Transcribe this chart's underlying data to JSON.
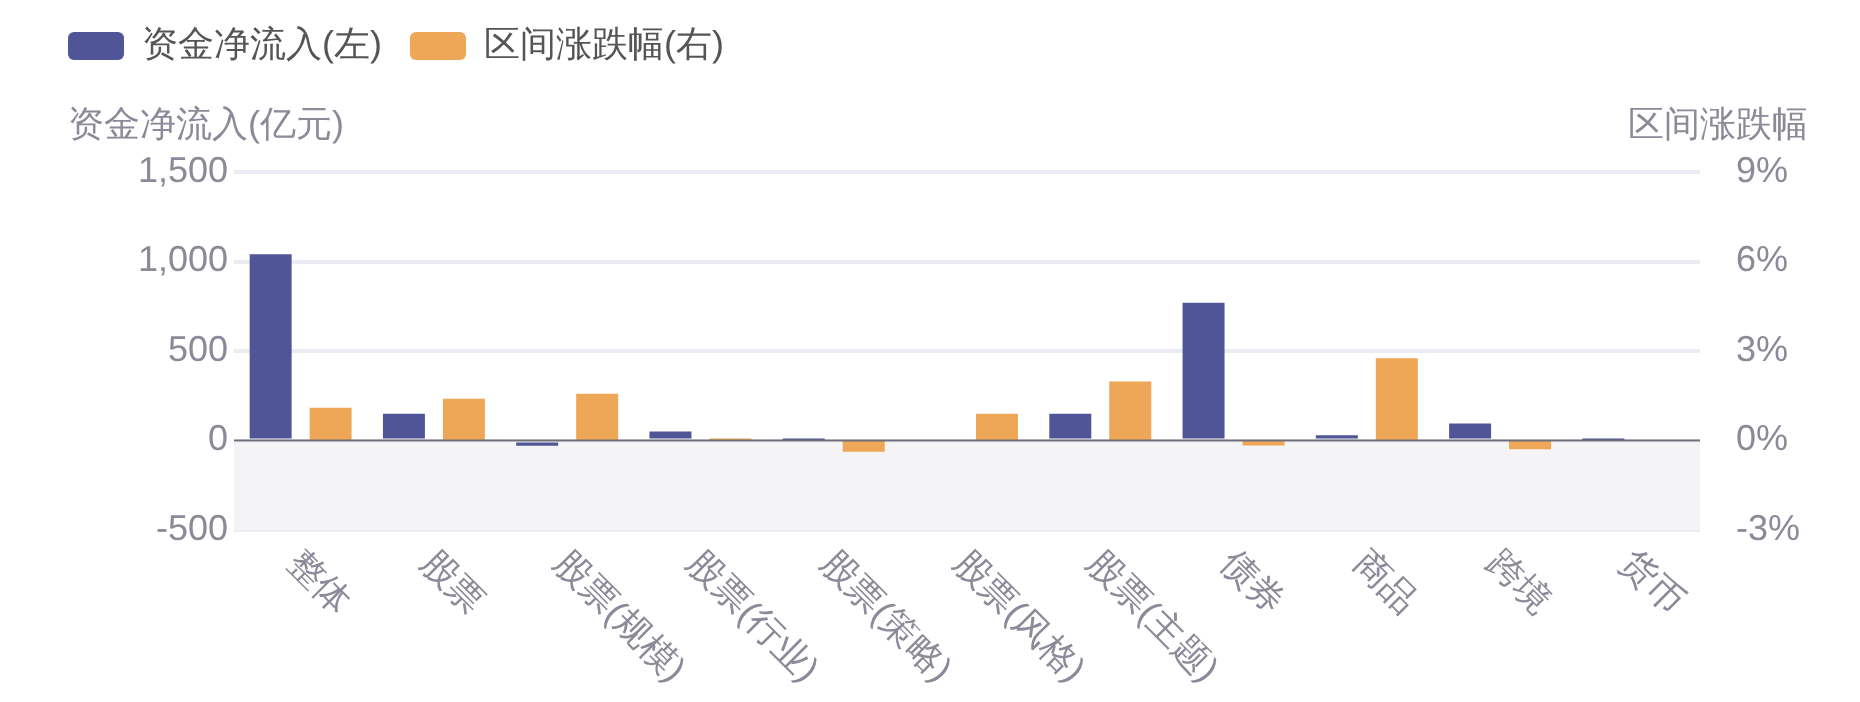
{
  "chart_data": {
    "type": "bar",
    "ylabel": "资金净流入(亿元)",
    "y2label": "区间涨跌幅",
    "categories": [
      "整体",
      "股票",
      "股票(规模)",
      "股票(行业)",
      "股票(策略)",
      "股票(风格)",
      "股票(主题)",
      "债券",
      "商品",
      "跨境",
      "货币"
    ],
    "series": [
      {
        "name": "资金净流入(左)",
        "color": "#4f5597",
        "values": [
          1040,
          150,
          -30,
          50,
          2,
          null,
          150,
          770,
          30,
          95,
          3
        ]
      },
      {
        "name": "区间涨跌幅(右)",
        "color": "#eea657",
        "axis": "y2",
        "values": [
          1.1,
          1.4,
          1.57,
          0.07,
          -0.38,
          0.9,
          1.98,
          -0.17,
          2.76,
          -0.29,
          null
        ]
      }
    ],
    "ylim": [
      -500,
      1500
    ],
    "yticks": [
      {
        "value": -500,
        "label": "-500"
      },
      {
        "value": 0,
        "label": "0"
      },
      {
        "value": 500,
        "label": "500"
      },
      {
        "value": 1000,
        "label": "1,000"
      },
      {
        "value": 1500,
        "label": "1,500"
      }
    ],
    "y2lim": [
      -3,
      9
    ],
    "y2ticks": [
      {
        "value": -3,
        "label": "-3%"
      },
      {
        "value": 0,
        "label": "0%"
      },
      {
        "value": 3,
        "label": "3%"
      },
      {
        "value": 6,
        "label": "6%"
      },
      {
        "value": 9,
        "label": "9%"
      }
    ],
    "bands": [
      {
        "axis": "y",
        "from": -500,
        "to": 0,
        "color": "#f4f4f7"
      }
    ],
    "grid": "y",
    "legend": "top left"
  }
}
